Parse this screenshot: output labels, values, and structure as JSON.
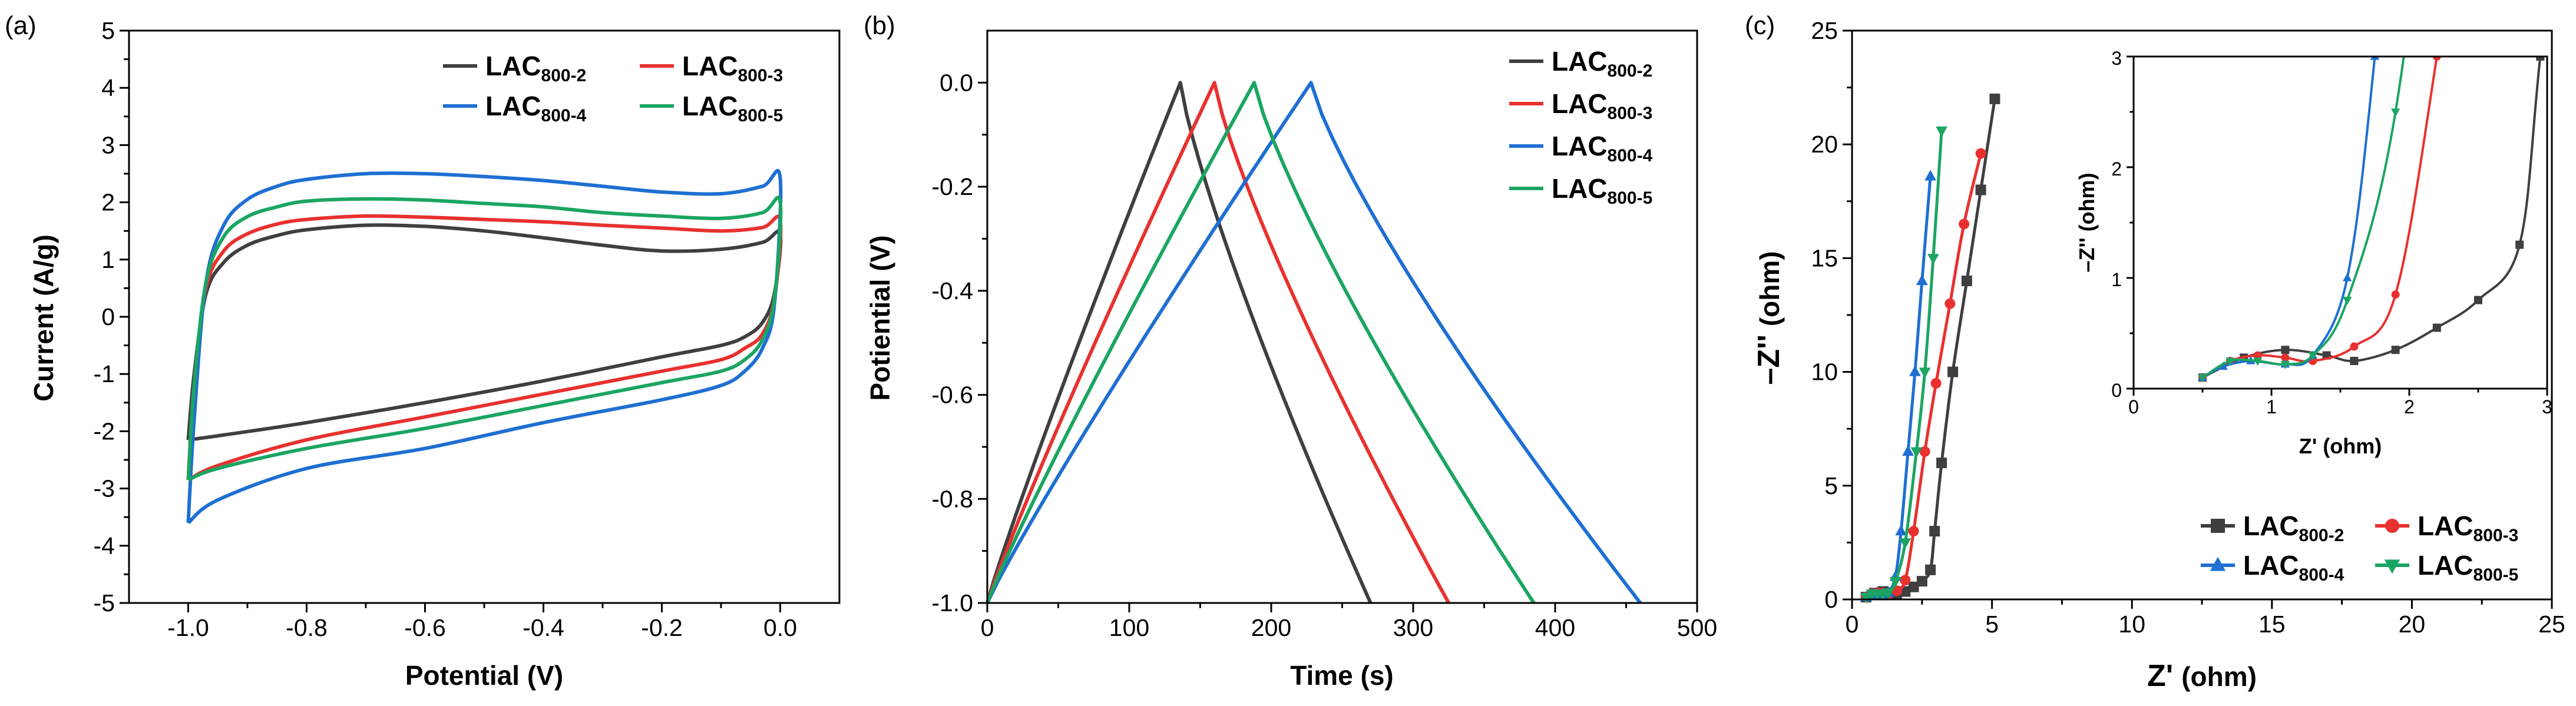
{
  "chart_data": [
    {
      "panel_label": "(a)",
      "type": "line",
      "xlabel": "Potential (V)",
      "ylabel": "Current (A/g)",
      "xlim": [
        -1.1,
        0.1
      ],
      "ylim": [
        -5,
        5
      ],
      "xticks": [
        "-1.0",
        "-0.8",
        "-0.6",
        "-0.4",
        "-0.2",
        "0.0"
      ],
      "yticks": [
        "-5",
        "-4",
        "-3",
        "-2",
        "-1",
        "0",
        "1",
        "2",
        "3",
        "4",
        "5"
      ],
      "legend_position": "top-right",
      "series": [
        {
          "name": "LAC",
          "sub": "800-2",
          "color": "#3f3f3f",
          "upper": [
            [
              -1.0,
              -2.15
            ],
            [
              -0.99,
              -1.0
            ],
            [
              -0.97,
              0.4
            ],
            [
              -0.94,
              0.95
            ],
            [
              -0.9,
              1.25
            ],
            [
              -0.85,
              1.42
            ],
            [
              -0.8,
              1.52
            ],
            [
              -0.7,
              1.6
            ],
            [
              -0.6,
              1.58
            ],
            [
              -0.5,
              1.5
            ],
            [
              -0.4,
              1.38
            ],
            [
              -0.3,
              1.25
            ],
            [
              -0.2,
              1.15
            ],
            [
              -0.1,
              1.18
            ],
            [
              -0.03,
              1.3
            ],
            [
              0.0,
              1.45
            ]
          ],
          "lower": [
            [
              0.0,
              0.95
            ],
            [
              -0.01,
              0.4
            ],
            [
              -0.03,
              -0.1
            ],
            [
              -0.06,
              -0.35
            ],
            [
              -0.1,
              -0.5
            ],
            [
              -0.2,
              -0.7
            ],
            [
              -0.4,
              -1.12
            ],
            [
              -0.6,
              -1.5
            ],
            [
              -0.8,
              -1.85
            ],
            [
              -0.95,
              -2.08
            ],
            [
              -1.0,
              -2.15
            ]
          ]
        },
        {
          "name": "LAC",
          "sub": "800-3",
          "color": "#e8312f",
          "upper": [
            [
              -1.0,
              -2.85
            ],
            [
              -0.99,
              -1.2
            ],
            [
              -0.97,
              0.5
            ],
            [
              -0.94,
              1.15
            ],
            [
              -0.9,
              1.45
            ],
            [
              -0.85,
              1.62
            ],
            [
              -0.8,
              1.7
            ],
            [
              -0.7,
              1.76
            ],
            [
              -0.6,
              1.74
            ],
            [
              -0.5,
              1.7
            ],
            [
              -0.4,
              1.66
            ],
            [
              -0.3,
              1.6
            ],
            [
              -0.2,
              1.55
            ],
            [
              -0.1,
              1.5
            ],
            [
              -0.03,
              1.56
            ],
            [
              0.0,
              1.68
            ]
          ],
          "lower": [
            [
              0.0,
              1.0
            ],
            [
              -0.01,
              0.3
            ],
            [
              -0.03,
              -0.3
            ],
            [
              -0.06,
              -0.55
            ],
            [
              -0.1,
              -0.75
            ],
            [
              -0.2,
              -0.95
            ],
            [
              -0.4,
              -1.35
            ],
            [
              -0.6,
              -1.75
            ],
            [
              -0.8,
              -2.15
            ],
            [
              -0.95,
              -2.6
            ],
            [
              -1.0,
              -2.85
            ]
          ]
        },
        {
          "name": "LAC",
          "sub": "800-4",
          "color": "#1e6fd2",
          "upper": [
            [
              -1.0,
              -3.6
            ],
            [
              -0.99,
              -1.8
            ],
            [
              -0.97,
              0.6
            ],
            [
              -0.94,
              1.6
            ],
            [
              -0.9,
              2.05
            ],
            [
              -0.85,
              2.28
            ],
            [
              -0.8,
              2.4
            ],
            [
              -0.7,
              2.5
            ],
            [
              -0.6,
              2.5
            ],
            [
              -0.5,
              2.45
            ],
            [
              -0.4,
              2.38
            ],
            [
              -0.3,
              2.28
            ],
            [
              -0.2,
              2.18
            ],
            [
              -0.1,
              2.15
            ],
            [
              -0.03,
              2.28
            ],
            [
              0.0,
              2.42
            ]
          ],
          "lower": [
            [
              0.0,
              1.0
            ],
            [
              -0.01,
              0.2
            ],
            [
              -0.03,
              -0.55
            ],
            [
              -0.06,
              -0.95
            ],
            [
              -0.1,
              -1.2
            ],
            [
              -0.2,
              -1.45
            ],
            [
              -0.4,
              -1.85
            ],
            [
              -0.6,
              -2.3
            ],
            [
              -0.8,
              -2.65
            ],
            [
              -0.95,
              -3.2
            ],
            [
              -1.0,
              -3.6
            ]
          ]
        },
        {
          "name": "LAC",
          "sub": "800-5",
          "color": "#1ba562",
          "upper": [
            [
              -1.0,
              -2.85
            ],
            [
              -0.99,
              -1.2
            ],
            [
              -0.97,
              0.6
            ],
            [
              -0.94,
              1.4
            ],
            [
              -0.9,
              1.75
            ],
            [
              -0.85,
              1.92
            ],
            [
              -0.8,
              2.02
            ],
            [
              -0.7,
              2.06
            ],
            [
              -0.6,
              2.04
            ],
            [
              -0.5,
              1.98
            ],
            [
              -0.4,
              1.92
            ],
            [
              -0.3,
              1.82
            ],
            [
              -0.2,
              1.76
            ],
            [
              -0.1,
              1.72
            ],
            [
              -0.03,
              1.82
            ],
            [
              0.0,
              2.0
            ]
          ],
          "lower": [
            [
              0.0,
              1.0
            ],
            [
              -0.01,
              0.3
            ],
            [
              -0.03,
              -0.4
            ],
            [
              -0.06,
              -0.75
            ],
            [
              -0.1,
              -0.95
            ],
            [
              -0.2,
              -1.15
            ],
            [
              -0.4,
              -1.55
            ],
            [
              -0.6,
              -1.95
            ],
            [
              -0.8,
              -2.3
            ],
            [
              -0.95,
              -2.65
            ],
            [
              -1.0,
              -2.85
            ]
          ]
        }
      ]
    },
    {
      "panel_label": "(b)",
      "type": "line",
      "xlabel": "Time (s)",
      "ylabel": "Potiential (V)",
      "xlim": [
        0,
        500
      ],
      "ylim": [
        -1.0,
        0.1
      ],
      "xticks": [
        "0",
        "100",
        "200",
        "300",
        "400",
        "500"
      ],
      "yticks": [
        "-1.0",
        "-0.8",
        "-0.6",
        "-0.4",
        "-0.2",
        "0.0"
      ],
      "legend_position": "top-right",
      "series": [
        {
          "name": "LAC",
          "sub": "800-2",
          "color": "#3f3f3f",
          "peak_time": 136,
          "end_time": 270
        },
        {
          "name": "LAC",
          "sub": "800-3",
          "color": "#e8312f",
          "peak_time": 160,
          "end_time": 325
        },
        {
          "name": "LAC",
          "sub": "800-4",
          "color": "#1e6fd2",
          "peak_time": 228,
          "end_time": 460
        },
        {
          "name": "LAC",
          "sub": "800-5",
          "color": "#1ba562",
          "peak_time": 188,
          "end_time": 385
        }
      ]
    },
    {
      "panel_label": "(c)",
      "type": "scatter",
      "xlabel": "Z'",
      "xlabel_unit": "(ohm)",
      "ylabel": "–Z''",
      "ylabel_unit": "(ohm)",
      "xlim": [
        0,
        25
      ],
      "ylim": [
        0,
        25
      ],
      "xticks": [
        "0",
        "5",
        "10",
        "15",
        "20",
        "25"
      ],
      "yticks": [
        "0",
        "5",
        "10",
        "15",
        "20",
        "25"
      ],
      "legend_position": "bottom-right",
      "series": [
        {
          "name": "LAC",
          "sub": "800-2",
          "color": "#3f3f3f",
          "marker": "square",
          "points": [
            [
              0.5,
              0.1
            ],
            [
              0.8,
              0.28
            ],
            [
              1.1,
              0.35
            ],
            [
              1.4,
              0.3
            ],
            [
              1.6,
              0.25
            ],
            [
              1.9,
              0.35
            ],
            [
              2.2,
              0.55
            ],
            [
              2.5,
              0.8
            ],
            [
              2.8,
              1.3
            ],
            [
              2.95,
              3
            ],
            [
              3.2,
              6
            ],
            [
              3.6,
              10
            ],
            [
              4.1,
              14
            ],
            [
              4.6,
              18
            ],
            [
              5.1,
              22
            ]
          ]
        },
        {
          "name": "LAC",
          "sub": "800-3",
          "color": "#e8312f",
          "marker": "circle",
          "points": [
            [
              0.5,
              0.1
            ],
            [
              0.7,
              0.25
            ],
            [
              0.9,
              0.3
            ],
            [
              1.1,
              0.28
            ],
            [
              1.3,
              0.25
            ],
            [
              1.6,
              0.38
            ],
            [
              1.9,
              0.85
            ],
            [
              2.2,
              3
            ],
            [
              2.6,
              6.5
            ],
            [
              3.0,
              9.5
            ],
            [
              3.5,
              13
            ],
            [
              4.0,
              16.5
            ],
            [
              4.6,
              19.6
            ]
          ]
        },
        {
          "name": "LAC",
          "sub": "800-4",
          "color": "#1e6fd2",
          "marker": "triangle-up",
          "points": [
            [
              0.5,
              0.1
            ],
            [
              0.65,
              0.2
            ],
            [
              0.85,
              0.25
            ],
            [
              1.1,
              0.22
            ],
            [
              1.3,
              0.3
            ],
            [
              1.55,
              1.0
            ],
            [
              1.75,
              3
            ],
            [
              2.0,
              6.5
            ],
            [
              2.25,
              10
            ],
            [
              2.5,
              14
            ],
            [
              2.8,
              18.6
            ]
          ]
        },
        {
          "name": "LAC",
          "sub": "800-5",
          "color": "#1ba562",
          "marker": "triangle-down",
          "points": [
            [
              0.5,
              0.1
            ],
            [
              0.7,
              0.25
            ],
            [
              0.9,
              0.25
            ],
            [
              1.1,
              0.22
            ],
            [
              1.3,
              0.3
            ],
            [
              1.55,
              0.8
            ],
            [
              1.9,
              2.5
            ],
            [
              2.3,
              6.5
            ],
            [
              2.6,
              10
            ],
            [
              2.9,
              15
            ],
            [
              3.2,
              20.6
            ]
          ]
        }
      ],
      "inset": {
        "xlabel": "Z'",
        "xlabel_unit": "(ohm)",
        "ylabel": "–Z''",
        "ylabel_unit": "(ohm)",
        "xlim": [
          0,
          3
        ],
        "ylim": [
          0,
          3
        ],
        "xticks": [
          "0",
          "1",
          "2",
          "3"
        ],
        "yticks": [
          "0",
          "1",
          "2",
          "3"
        ]
      }
    }
  ]
}
